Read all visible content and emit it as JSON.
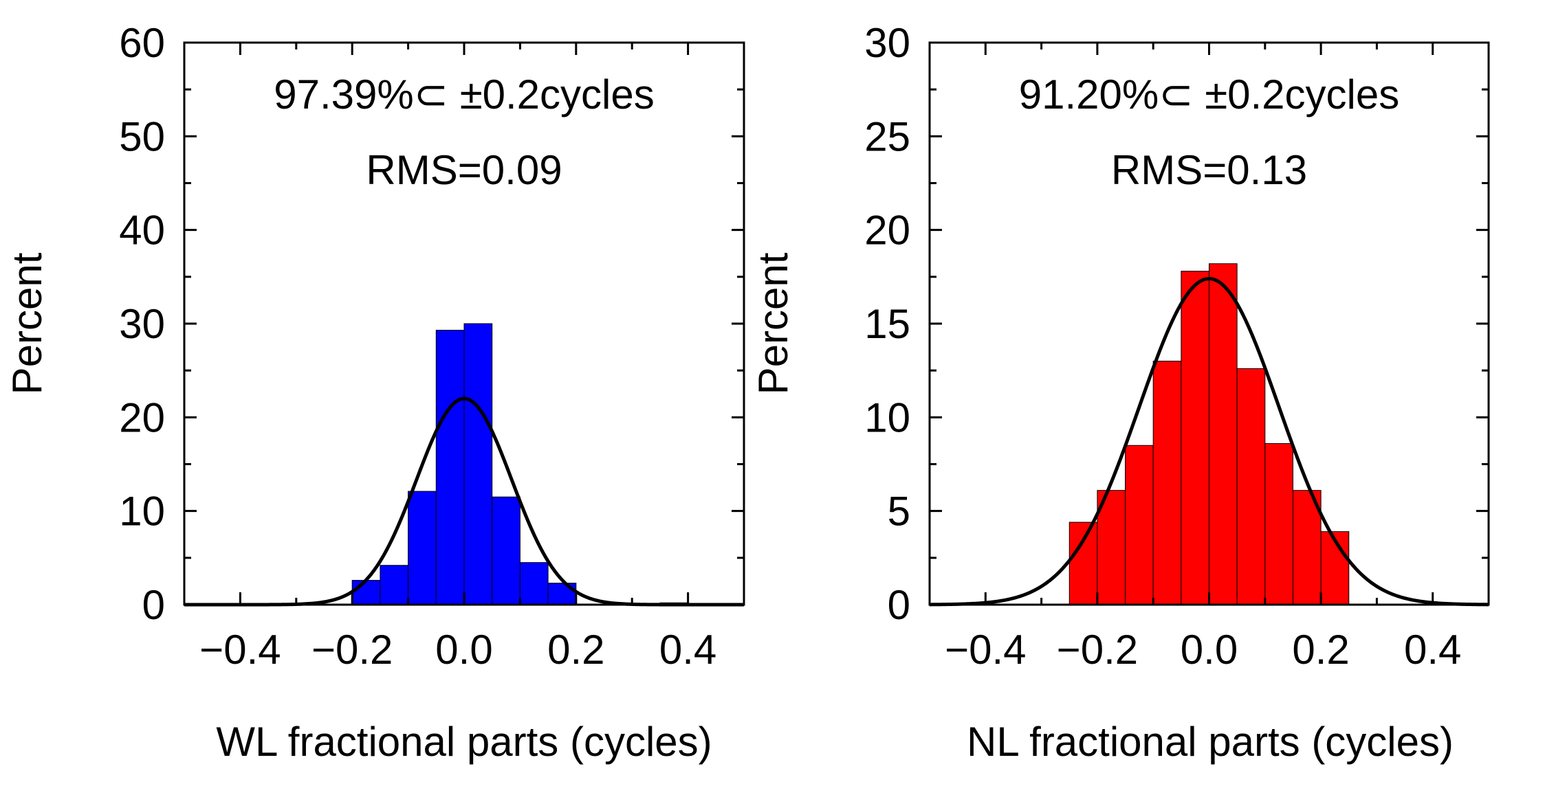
{
  "chart_data": [
    {
      "type": "bar",
      "panel": "left",
      "title": "",
      "xlabel": "WL fractional parts (cycles)",
      "ylabel": "Percent",
      "xlim": [
        -0.5,
        0.5
      ],
      "ylim": [
        0,
        60
      ],
      "xticks": [
        -0.4,
        -0.2,
        0.0,
        0.2,
        0.4
      ],
      "xtick_labels": [
        "−0.4",
        "−0.2",
        "0.0",
        "0.2",
        "0.4"
      ],
      "yticks": [
        0,
        10,
        20,
        30,
        40,
        50,
        60
      ],
      "ytick_labels": [
        "0",
        "10",
        "20",
        "30",
        "40",
        "50",
        "60"
      ],
      "bar_color": "#0000ff",
      "bin_width": 0.05,
      "bins": [
        {
          "x0": -0.2,
          "value": 2.6
        },
        {
          "x0": -0.15,
          "value": 4.2
        },
        {
          "x0": -0.1,
          "value": 12.1
        },
        {
          "x0": -0.05,
          "value": 29.3
        },
        {
          "x0": 0.0,
          "value": 30.0
        },
        {
          "x0": 0.05,
          "value": 11.5
        },
        {
          "x0": 0.1,
          "value": 4.5
        },
        {
          "x0": 0.15,
          "value": 2.3
        },
        {
          "x0": 0.35,
          "value": 0.2
        }
      ],
      "fit_curve": {
        "type": "gaussian",
        "mean": 0.0,
        "peak": 22.0,
        "sigma": 0.085,
        "color": "#000000"
      },
      "annotations": [
        "97.39%⊂ ±0.2cycles",
        "RMS=0.09"
      ]
    },
    {
      "type": "bar",
      "panel": "right",
      "title": "",
      "xlabel": "NL fractional parts (cycles)",
      "ylabel": "Percent",
      "xlim": [
        -0.5,
        0.5
      ],
      "ylim": [
        0,
        30
      ],
      "xticks": [
        -0.4,
        -0.2,
        0.0,
        0.2,
        0.4
      ],
      "xtick_labels": [
        "−0.4",
        "−0.2",
        "0.0",
        "0.2",
        "0.4"
      ],
      "yticks": [
        0,
        5,
        10,
        15,
        20,
        25,
        30
      ],
      "ytick_labels": [
        "0",
        "5",
        "10",
        "15",
        "20",
        "25",
        "30"
      ],
      "bar_color": "#ff0000",
      "bin_width": 0.05,
      "bins": [
        {
          "x0": -0.25,
          "value": 4.4
        },
        {
          "x0": -0.2,
          "value": 6.1
        },
        {
          "x0": -0.15,
          "value": 8.5
        },
        {
          "x0": -0.1,
          "value": 13.0
        },
        {
          "x0": -0.05,
          "value": 17.8
        },
        {
          "x0": 0.0,
          "value": 18.2
        },
        {
          "x0": 0.05,
          "value": 12.6
        },
        {
          "x0": 0.1,
          "value": 8.6
        },
        {
          "x0": 0.15,
          "value": 6.1
        },
        {
          "x0": 0.2,
          "value": 3.9
        }
      ],
      "fit_curve": {
        "type": "gaussian",
        "mean": 0.0,
        "peak": 17.4,
        "sigma": 0.125,
        "color": "#000000"
      },
      "annotations": [
        "91.20%⊂ ±0.2cycles",
        "RMS=0.13"
      ]
    }
  ]
}
